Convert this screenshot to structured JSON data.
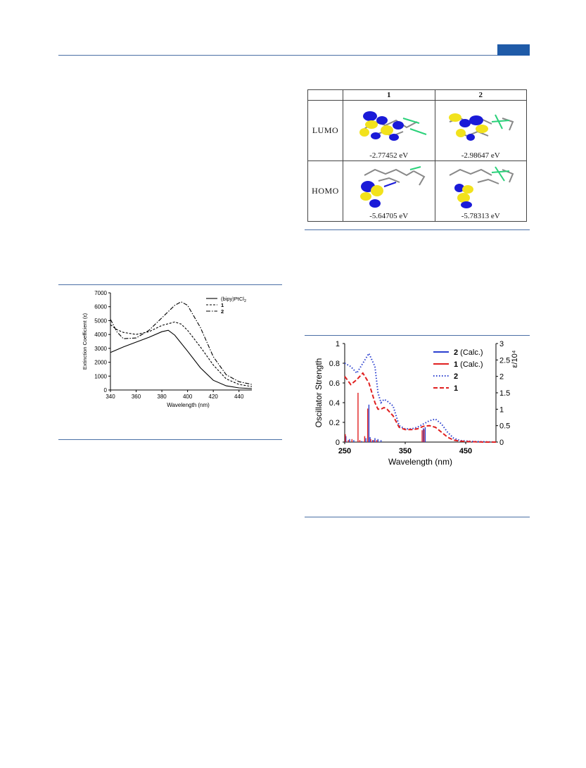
{
  "mo_table": {
    "headers": [
      "",
      "1",
      "2"
    ],
    "rows": [
      {
        "label": "LUMO",
        "e1": "-2.77452 eV",
        "e2": "-2.98647 eV"
      },
      {
        "label": "HOMO",
        "e1": "-5.64705 eV",
        "e2": "-5.78313 eV"
      }
    ]
  },
  "chart_data": [
    {
      "type": "line",
      "xlabel": "Wavelength (nm)",
      "ylabel": "Extinction Coefficient (ε)",
      "xlim": [
        340,
        450
      ],
      "ylim": [
        0,
        7000
      ],
      "xticks": [
        "340",
        "360",
        "380",
        "400",
        "420",
        "440"
      ],
      "yticks": [
        "0",
        "1000",
        "2000",
        "3000",
        "4000",
        "5000",
        "6000",
        "7000"
      ],
      "legend_position": "top-right",
      "series": [
        {
          "name": "(bipy)PtCl2",
          "style": "solid",
          "x": [
            340,
            350,
            360,
            370,
            380,
            385,
            390,
            400,
            410,
            420,
            430,
            440,
            450
          ],
          "y": [
            2700,
            3100,
            3450,
            3800,
            4200,
            4300,
            3950,
            2800,
            1600,
            700,
            300,
            150,
            100
          ]
        },
        {
          "name": "1",
          "style": "dashed",
          "x": [
            340,
            345,
            350,
            360,
            370,
            380,
            390,
            395,
            400,
            410,
            420,
            430,
            440,
            450
          ],
          "y": [
            4700,
            4350,
            4150,
            4000,
            4200,
            4650,
            4900,
            4750,
            4300,
            3100,
            1800,
            800,
            400,
            250
          ]
        },
        {
          "name": "2",
          "style": "dash-dot",
          "x": [
            340,
            345,
            350,
            360,
            370,
            380,
            390,
            395,
            400,
            410,
            420,
            430,
            440,
            450
          ],
          "y": [
            5100,
            4200,
            3700,
            3750,
            4300,
            5200,
            6100,
            6350,
            6100,
            4500,
            2400,
            1100,
            600,
            400
          ]
        }
      ]
    },
    {
      "type": "line",
      "xlabel": "Wavelength (nm)",
      "ylabel": "Oscillator Strength",
      "y2label": "ε/10⁴",
      "xlim": [
        250,
        500
      ],
      "ylim": [
        0,
        1
      ],
      "y2lim": [
        0,
        3
      ],
      "xticks": [
        "250",
        "350",
        "450"
      ],
      "yticks": [
        "0",
        "0.2",
        "0.4",
        "0.6",
        "0.8",
        "1"
      ],
      "y2ticks": [
        "0",
        "0.5",
        "1",
        "1.5",
        "2",
        "2.5",
        "3"
      ],
      "legend_position": "top-right",
      "legend": [
        {
          "bold": "2",
          "rest": " (Calc.)",
          "color": "#2a3fcf",
          "style": "bar"
        },
        {
          "bold": "1",
          "rest": " (Calc.)",
          "color": "#e02020",
          "style": "bar"
        },
        {
          "bold": "2",
          "rest": "",
          "color": "#2a3fcf",
          "style": "dotted"
        },
        {
          "bold": "1",
          "rest": "",
          "color": "#e02020",
          "style": "dashed"
        }
      ],
      "series": [
        {
          "name": "2",
          "axis": "right",
          "color": "#2a3fcf",
          "style": "dotted",
          "x": [
            250,
            260,
            270,
            280,
            290,
            300,
            305,
            310,
            315,
            320,
            330,
            340,
            350,
            360,
            370,
            380,
            390,
            400,
            410,
            420,
            430,
            440,
            460,
            480,
            500
          ],
          "y": [
            2.4,
            2.3,
            2.1,
            2.4,
            2.7,
            2.3,
            1.5,
            1.2,
            1.3,
            1.25,
            1.1,
            0.5,
            0.4,
            0.4,
            0.45,
            0.55,
            0.65,
            0.7,
            0.55,
            0.3,
            0.12,
            0.05,
            0.02,
            0.01,
            0.0
          ]
        },
        {
          "name": "1",
          "axis": "right",
          "color": "#e02020",
          "style": "dashed",
          "x": [
            250,
            260,
            270,
            280,
            290,
            300,
            305,
            310,
            315,
            320,
            330,
            340,
            350,
            360,
            370,
            380,
            390,
            400,
            410,
            420,
            430,
            440,
            460,
            480,
            500
          ],
          "y": [
            2.0,
            1.75,
            1.9,
            2.1,
            1.8,
            1.2,
            1.0,
            1.0,
            1.05,
            1.0,
            0.8,
            0.45,
            0.38,
            0.38,
            0.4,
            0.48,
            0.5,
            0.45,
            0.3,
            0.15,
            0.06,
            0.03,
            0.01,
            0.0,
            0.0
          ]
        },
        {
          "name": "2 (Calc.)",
          "axis": "left",
          "color": "#2a3fcf",
          "style": "bar",
          "x": [
            252,
            258,
            265,
            278,
            285,
            290,
            292,
            296,
            300,
            305,
            310,
            380,
            383
          ],
          "y": [
            0.06,
            0.03,
            0.02,
            0.01,
            0.04,
            0.38,
            0.05,
            0.02,
            0.04,
            0.03,
            0.02,
            0.14,
            0.15
          ]
        },
        {
          "name": "1 (Calc.)",
          "axis": "left",
          "color": "#e02020",
          "style": "bar",
          "x": [
            251,
            256,
            262,
            272,
            275,
            283,
            288,
            293,
            298,
            303,
            378,
            381
          ],
          "y": [
            0.08,
            0.02,
            0.03,
            0.5,
            0.02,
            0.06,
            0.34,
            0.03,
            0.02,
            0.02,
            0.12,
            0.13
          ]
        }
      ]
    }
  ]
}
